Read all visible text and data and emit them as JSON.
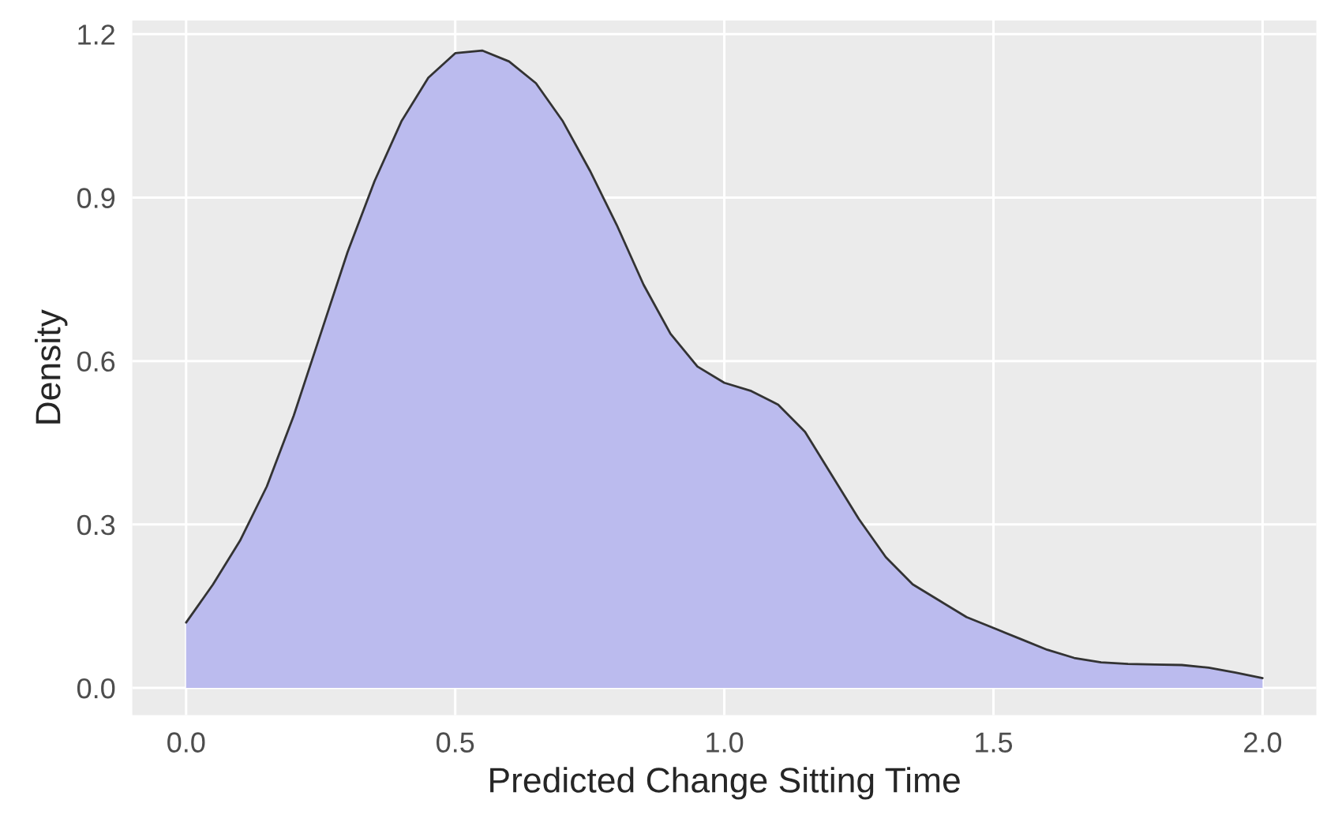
{
  "chart_data": {
    "type": "area",
    "xlabel": "Predicted Change Sitting Time",
    "ylabel": "Density",
    "x": [
      0,
      0.05,
      0.1,
      0.15,
      0.2,
      0.25,
      0.3,
      0.35,
      0.4,
      0.45,
      0.5,
      0.55,
      0.6,
      0.65,
      0.7,
      0.75,
      0.8,
      0.85,
      0.9,
      0.95,
      1.0,
      1.05,
      1.1,
      1.15,
      1.2,
      1.25,
      1.3,
      1.35,
      1.4,
      1.45,
      1.5,
      1.55,
      1.6,
      1.65,
      1.7,
      1.75,
      1.8,
      1.85,
      1.9,
      1.95,
      2.0
    ],
    "series": [
      {
        "color": "#bbbbee",
        "values": [
          0.12,
          0.19,
          0.27,
          0.37,
          0.5,
          0.65,
          0.8,
          0.93,
          1.04,
          1.12,
          1.165,
          1.17,
          1.15,
          1.11,
          1.04,
          0.95,
          0.85,
          0.74,
          0.65,
          0.59,
          0.56,
          0.545,
          0.52,
          0.47,
          0.39,
          0.31,
          0.24,
          0.19,
          0.16,
          0.13,
          0.11,
          0.09,
          0.07,
          0.055,
          0.047,
          0.044,
          0.043,
          0.042,
          0.037,
          0.028,
          0.018
        ]
      }
    ],
    "xlim": [
      -0.1,
      2.1
    ],
    "ylim": [
      -0.05,
      1.225
    ],
    "xticks": [
      {
        "value": 0,
        "label": "0.0"
      },
      0.5,
      {
        "value": 1,
        "label": "1.0"
      },
      1.5,
      {
        "value": 2,
        "label": "2.0"
      }
    ],
    "yticks": [
      {
        "value": 0,
        "label": "0.0"
      },
      0.3,
      0.6,
      0.9,
      1.2
    ],
    "grid": true
  }
}
